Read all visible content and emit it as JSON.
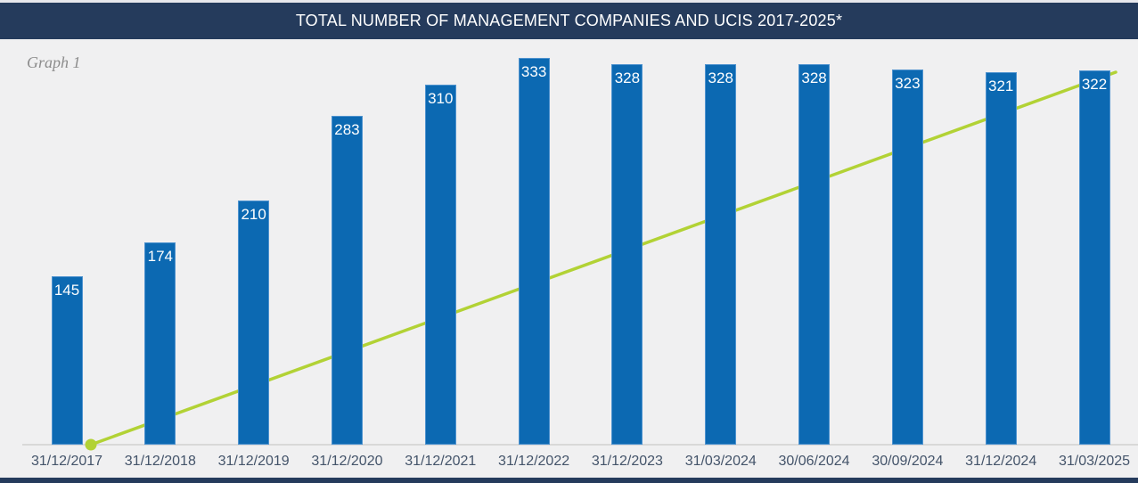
{
  "header": {
    "title": "TOTAL NUMBER OF MANAGEMENT COMPANIES AND UCIS 2017-2025*"
  },
  "graph_label": "Graph 1",
  "chart_data": {
    "type": "bar",
    "title": "TOTAL NUMBER OF MANAGEMENT COMPANIES AND UCIS 2017-2025*",
    "categories": [
      "31/12/2017",
      "31/12/2018",
      "31/12/2019",
      "31/12/2020",
      "31/12/2021",
      "31/12/2022",
      "31/12/2023",
      "31/03/2024",
      "30/06/2024",
      "30/09/2024",
      "31/12/2024",
      "31/03/2025"
    ],
    "series": [
      {
        "name": "management-companies-and-ucis",
        "values": [
          145,
          174,
          210,
          283,
          310,
          333,
          328,
          328,
          328,
          323,
          321,
          322
        ],
        "color": "#0c69b2"
      }
    ],
    "bar_value_labels": "white, inside top of each bar",
    "trend_line": {
      "shape": "straight rising line drawn behind the bars",
      "marker": "dot at start only",
      "start": {
        "category": "31/12/2017",
        "approx_value": 0
      },
      "end": {
        "category": "31/03/2025",
        "approx_value": 320
      },
      "color": "#b2d235"
    },
    "xlabel": "",
    "ylabel": "",
    "ylim": [
      0,
      340
    ],
    "grid": false,
    "legend": false,
    "y_axis_visible": false
  },
  "colors": {
    "header_bar": "#253b5c",
    "bottom_strip": "#253b5c",
    "background": "#f0f0f1",
    "bar_fill": "#0c69b2",
    "bar_border": "#4f93cf",
    "bar_label_text": "#ffffff",
    "trend_line": "#b2d235",
    "axis_line": "#d8d8d8",
    "x_label_text": "#44546a",
    "graph_label_text": "#8c8c8c",
    "title_text": "#ffffff"
  }
}
